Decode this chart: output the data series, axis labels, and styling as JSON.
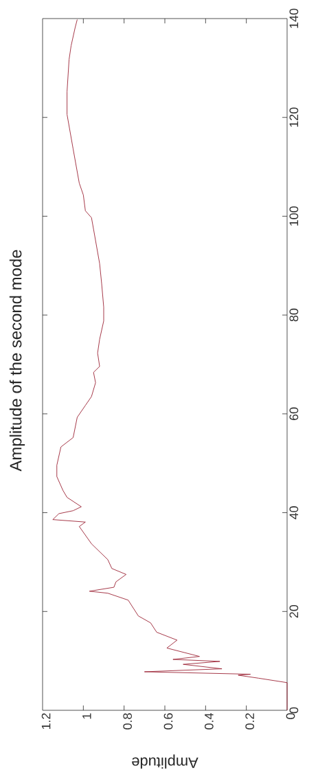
{
  "chart_data": {
    "type": "line",
    "title": "Amplitude of the second mode",
    "xlabel": "Amplitude",
    "color": "#9b2335",
    "x": [
      0,
      0,
      0.14,
      0.24,
      0.18,
      0.7,
      0.32,
      0.51,
      0.33,
      0.56,
      0.43,
      0.59,
      0.54,
      0.64,
      0.67,
      0.73,
      0.78,
      0.88,
      0.97,
      0.85,
      0.84,
      0.79,
      0.86,
      0.88,
      0.96,
      1.02,
      0.99,
      1.15,
      1.12,
      1.05,
      1.01,
      1.08,
      1.1,
      1.13,
      1.13,
      1.11,
      1.05,
      1.03,
      0.99,
      0.96,
      0.94,
      0.95,
      0.92,
      0.93,
      0.92,
      0.9,
      0.9,
      0.91,
      0.92,
      0.95,
      0.96,
      0.99,
      1.0,
      1.02,
      1.05,
      1.08,
      1.08,
      1.07,
      1.06,
      1.04,
      1.03
    ],
    "values": [
      0,
      5.6,
      6.5,
      7.1,
      7.3,
      7.8,
      8.4,
      9.3,
      9.9,
      10.3,
      10.9,
      12.6,
      14.2,
      15.8,
      17.7,
      19.1,
      22.3,
      23.7,
      24.1,
      24.9,
      26.0,
      27.5,
      28.7,
      30.5,
      33.7,
      37.2,
      38.1,
      38.6,
      39.8,
      40.4,
      41.2,
      43.1,
      44.5,
      47.3,
      49.6,
      53.3,
      55.2,
      59.3,
      61.7,
      63.5,
      66.3,
      68.4,
      69.6,
      72.3,
      75.1,
      78.8,
      81.6,
      86.3,
      90.4,
      97.4,
      99.7,
      101.1,
      104.3,
      106.7,
      113.6,
      120.6,
      125.2,
      131.7,
      134.5,
      138.2,
      139.8
    ],
    "xlim": [
      1.2,
      0
    ],
    "ylim": [
      0,
      140
    ],
    "xticks": [
      0,
      0.2,
      0.4,
      0.6,
      0.8,
      1,
      1.2
    ],
    "yticks": [
      0,
      20,
      40,
      60,
      80,
      100,
      120,
      140
    ]
  }
}
